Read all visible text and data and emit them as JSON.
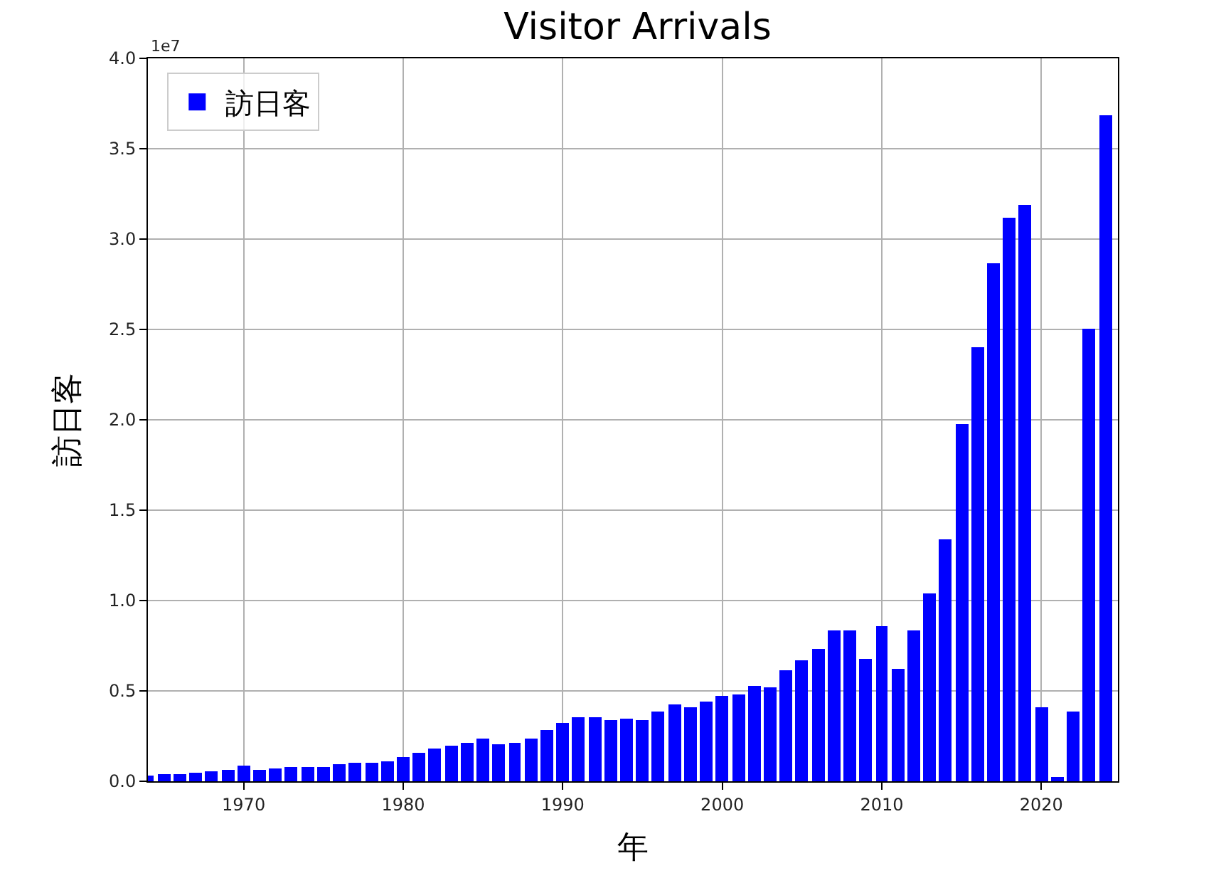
{
  "chart_data": {
    "type": "bar",
    "title": "Visitor Arrivals",
    "xlabel": "年",
    "ylabel": "訪日客",
    "x": [
      1964,
      1965,
      1966,
      1967,
      1968,
      1969,
      1970,
      1971,
      1972,
      1973,
      1974,
      1975,
      1976,
      1977,
      1978,
      1979,
      1980,
      1981,
      1982,
      1983,
      1984,
      1985,
      1986,
      1987,
      1988,
      1989,
      1990,
      1991,
      1992,
      1993,
      1994,
      1995,
      1996,
      1997,
      1998,
      1999,
      2000,
      2001,
      2002,
      2003,
      2004,
      2005,
      2006,
      2007,
      2008,
      2009,
      2010,
      2011,
      2012,
      2013,
      2014,
      2015,
      2016,
      2017,
      2018,
      2019,
      2020,
      2021,
      2022,
      2023,
      2024
    ],
    "series": [
      {
        "name": "訪日客",
        "color": "#0000ff",
        "values": [
          0.035,
          0.037,
          0.043,
          0.048,
          0.052,
          0.061,
          0.085,
          0.066,
          0.072,
          0.078,
          0.076,
          0.081,
          0.091,
          0.103,
          0.104,
          0.111,
          0.132,
          0.158,
          0.179,
          0.197,
          0.211,
          0.233,
          0.206,
          0.216,
          0.236,
          0.284,
          0.324,
          0.353,
          0.358,
          0.341,
          0.347,
          0.335,
          0.384,
          0.422,
          0.411,
          0.444,
          0.476,
          0.477,
          0.524,
          0.521,
          0.614,
          0.673,
          0.733,
          0.835,
          0.835,
          0.679,
          0.861,
          0.622,
          0.836,
          1.036,
          1.341,
          1.974,
          2.404,
          2.869,
          3.119,
          3.188,
          0.412,
          0.025,
          0.383,
          2.507,
          3.687
        ]
      }
    ],
    "xlim": [
      1964,
      2024.8
    ],
    "xticks": [
      1970,
      1980,
      1990,
      2000,
      2010,
      2020
    ],
    "ylim": [
      0,
      4
    ],
    "yticks": [
      {
        "value": 0,
        "label": "0.0"
      },
      0.5,
      {
        "value": 1,
        "label": "1.0"
      },
      1.5,
      {
        "value": 2,
        "label": "2.0"
      },
      2.5,
      {
        "value": 3,
        "label": "3.0"
      },
      3.5,
      {
        "value": 4,
        "label": "4.0"
      }
    ],
    "annotations": [
      "1e7"
    ],
    "grid": true,
    "legend": "top left"
  }
}
